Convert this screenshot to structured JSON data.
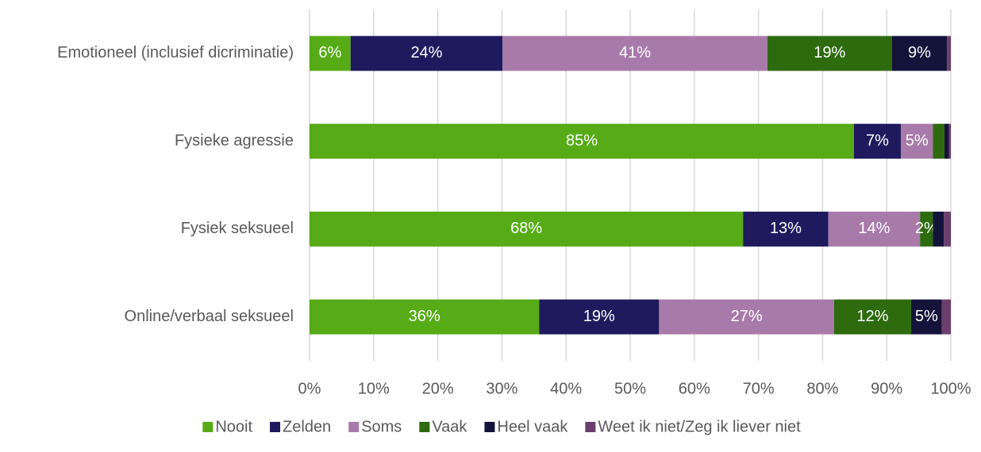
{
  "chart_data": {
    "type": "stacked_bar_h",
    "categories": [
      "Emotioneel (inclusief dicriminatie)",
      "Fysieke agressie",
      "Fysiek seksueel",
      "Online/verbaal seksueel"
    ],
    "series": [
      {
        "name": "Nooit",
        "color": "#56ab16",
        "values": [
          6.4,
          84.9,
          67.6,
          35.8
        ],
        "value_labels": [
          "6%",
          "85%",
          "68%",
          "36%"
        ]
      },
      {
        "name": "Zelden",
        "color": "#1f1a5e",
        "values": [
          23.7,
          7.3,
          13.3,
          18.7
        ],
        "value_labels": [
          "24%",
          "7%",
          "13%",
          "19%"
        ]
      },
      {
        "name": "Soms",
        "color": "#a87aaa",
        "values": [
          41.3,
          5.0,
          14.3,
          27.3
        ],
        "value_labels": [
          "41%",
          "5%",
          "14%",
          "27%"
        ]
      },
      {
        "name": "Vaak",
        "color": "#2e6a0e",
        "values": [
          19.4,
          1.8,
          2.0,
          12.0
        ],
        "value_labels": [
          "19%",
          null,
          "2%",
          "12%"
        ]
      },
      {
        "name": "Heel vaak",
        "color": "#14133a",
        "values": [
          8.6,
          0.7,
          1.7,
          4.8
        ],
        "value_labels": [
          "9%",
          null,
          null,
          "5%"
        ]
      },
      {
        "name": "Weet ik niet/Zeg ik liever niet",
        "color": "#6b3f6b",
        "values": [
          0.6,
          0.3,
          1.1,
          1.4
        ],
        "value_labels": [
          null,
          null,
          null,
          null
        ]
      }
    ],
    "xlim": [
      0,
      100
    ],
    "xticks": [
      {
        "value": 0,
        "label": "0%"
      },
      {
        "value": 10,
        "label": "10%"
      },
      {
        "value": 20,
        "label": "20%"
      },
      {
        "value": 30,
        "label": "30%"
      },
      {
        "value": 40,
        "label": "40%"
      },
      {
        "value": 50,
        "label": "50%"
      },
      {
        "value": 60,
        "label": "60%"
      },
      {
        "value": 70,
        "label": "70%"
      },
      {
        "value": 80,
        "label": "80%"
      },
      {
        "value": 90,
        "label": "90%"
      },
      {
        "value": 100,
        "label": "100%"
      }
    ],
    "grid": true,
    "legend": "bottom"
  }
}
